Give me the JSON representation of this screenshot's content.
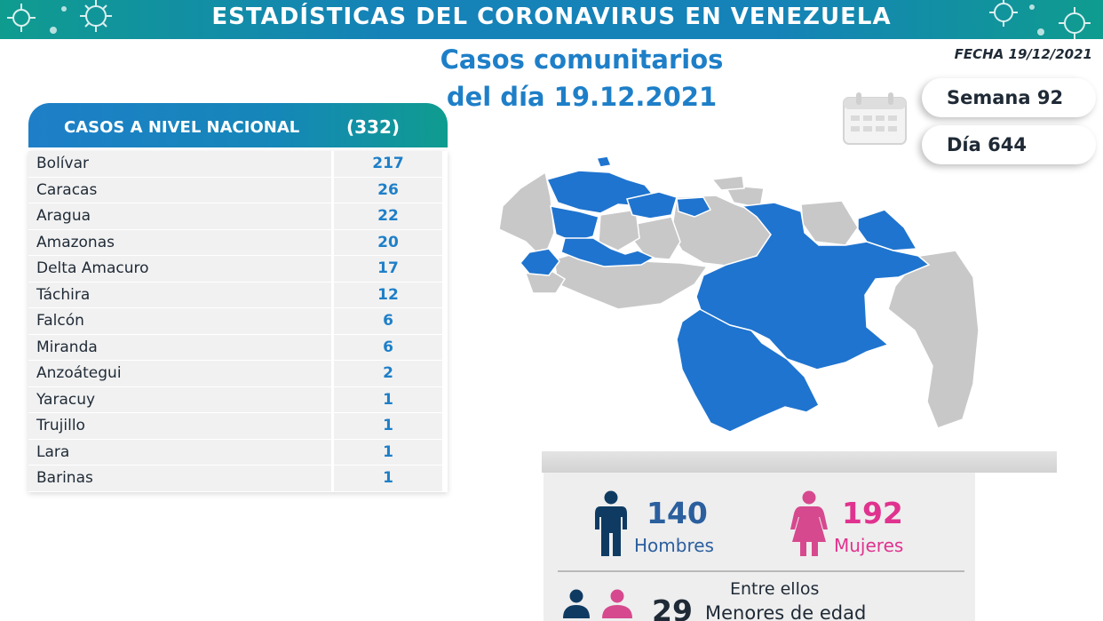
{
  "header": {
    "title": "ESTADÍSTICAS DEL CORONAVIRUS EN VENEZUELA"
  },
  "subtitle": {
    "line1": "Casos comunitarios",
    "line2": "del día 19.12.2021"
  },
  "fecha": "FECHA 19/12/2021",
  "semana": "Semana 92",
  "dia": "Día 644",
  "table": {
    "title": "CASOS A NIVEL NACIONAL",
    "total": "(332)",
    "rows": [
      {
        "state": "Bolívar",
        "count": "217"
      },
      {
        "state": "Caracas",
        "count": "26"
      },
      {
        "state": "Aragua",
        "count": "22"
      },
      {
        "state": "Amazonas",
        "count": "20"
      },
      {
        "state": "Delta Amacuro",
        "count": "17"
      },
      {
        "state": "Táchira",
        "count": "12"
      },
      {
        "state": "Falcón",
        "count": "6"
      },
      {
        "state": "Miranda",
        "count": "6"
      },
      {
        "state": "Anzoátegui",
        "count": "2"
      },
      {
        "state": "Yaracuy",
        "count": "1"
      },
      {
        "state": "Trujillo",
        "count": "1"
      },
      {
        "state": "Lara",
        "count": "1"
      },
      {
        "state": "Barinas",
        "count": "1"
      }
    ]
  },
  "gender": {
    "men_count": "140",
    "men_label": "Hombres",
    "women_count": "192",
    "women_label": "Mujeres",
    "minors_intro": "Entre ellos",
    "minors_count": "29",
    "minors_label": "Menores de edad"
  },
  "colors": {
    "accent_blue": "#1e7fc8",
    "teal": "#0f9c8f",
    "map_affected": "#1f74cf",
    "map_unaffected": "#c8c8c8",
    "men": "#0f3b62",
    "women": "#d6498e",
    "men_number": "#2b5f9e",
    "women_number": "#e0338f"
  },
  "icons": [
    "virus-icon",
    "calendar-icon",
    "man-icon",
    "woman-icon",
    "family-icon"
  ]
}
